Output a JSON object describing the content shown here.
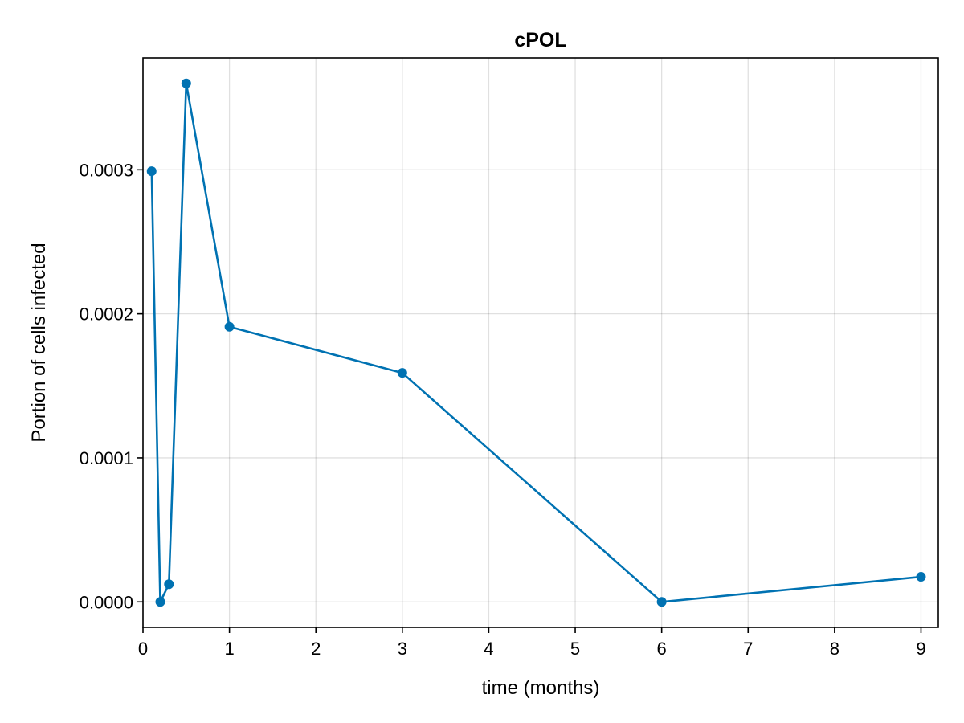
{
  "chart_data": {
    "type": "line",
    "title": "cPOL",
    "xlabel": "time (months)",
    "ylabel": "Portion of cells infected",
    "xlim": [
      0,
      9.2
    ],
    "ylim": [
      -1.77e-05,
      0.0003777
    ],
    "x_ticks": [
      0,
      1,
      2,
      3,
      4,
      5,
      6,
      7,
      8,
      9
    ],
    "x_tick_labels": [
      "0",
      "1",
      "2",
      "3",
      "4",
      "5",
      "6",
      "7",
      "8",
      "9"
    ],
    "y_ticks": [
      0,
      0.0001,
      0.0002,
      0.0003
    ],
    "y_tick_labels": [
      "0.0000",
      "0.0001",
      "0.0002",
      "0.0003"
    ],
    "grid": true,
    "series": [
      {
        "color": "#0072b2",
        "marker": "circle",
        "x": [
          0.1,
          0.2,
          0.3,
          0.5,
          1,
          3,
          6,
          9
        ],
        "y": [
          0.000299,
          0.0,
          1.23e-05,
          0.00036,
          0.000191,
          0.000159,
          0.0,
          1.74e-05
        ]
      }
    ]
  }
}
